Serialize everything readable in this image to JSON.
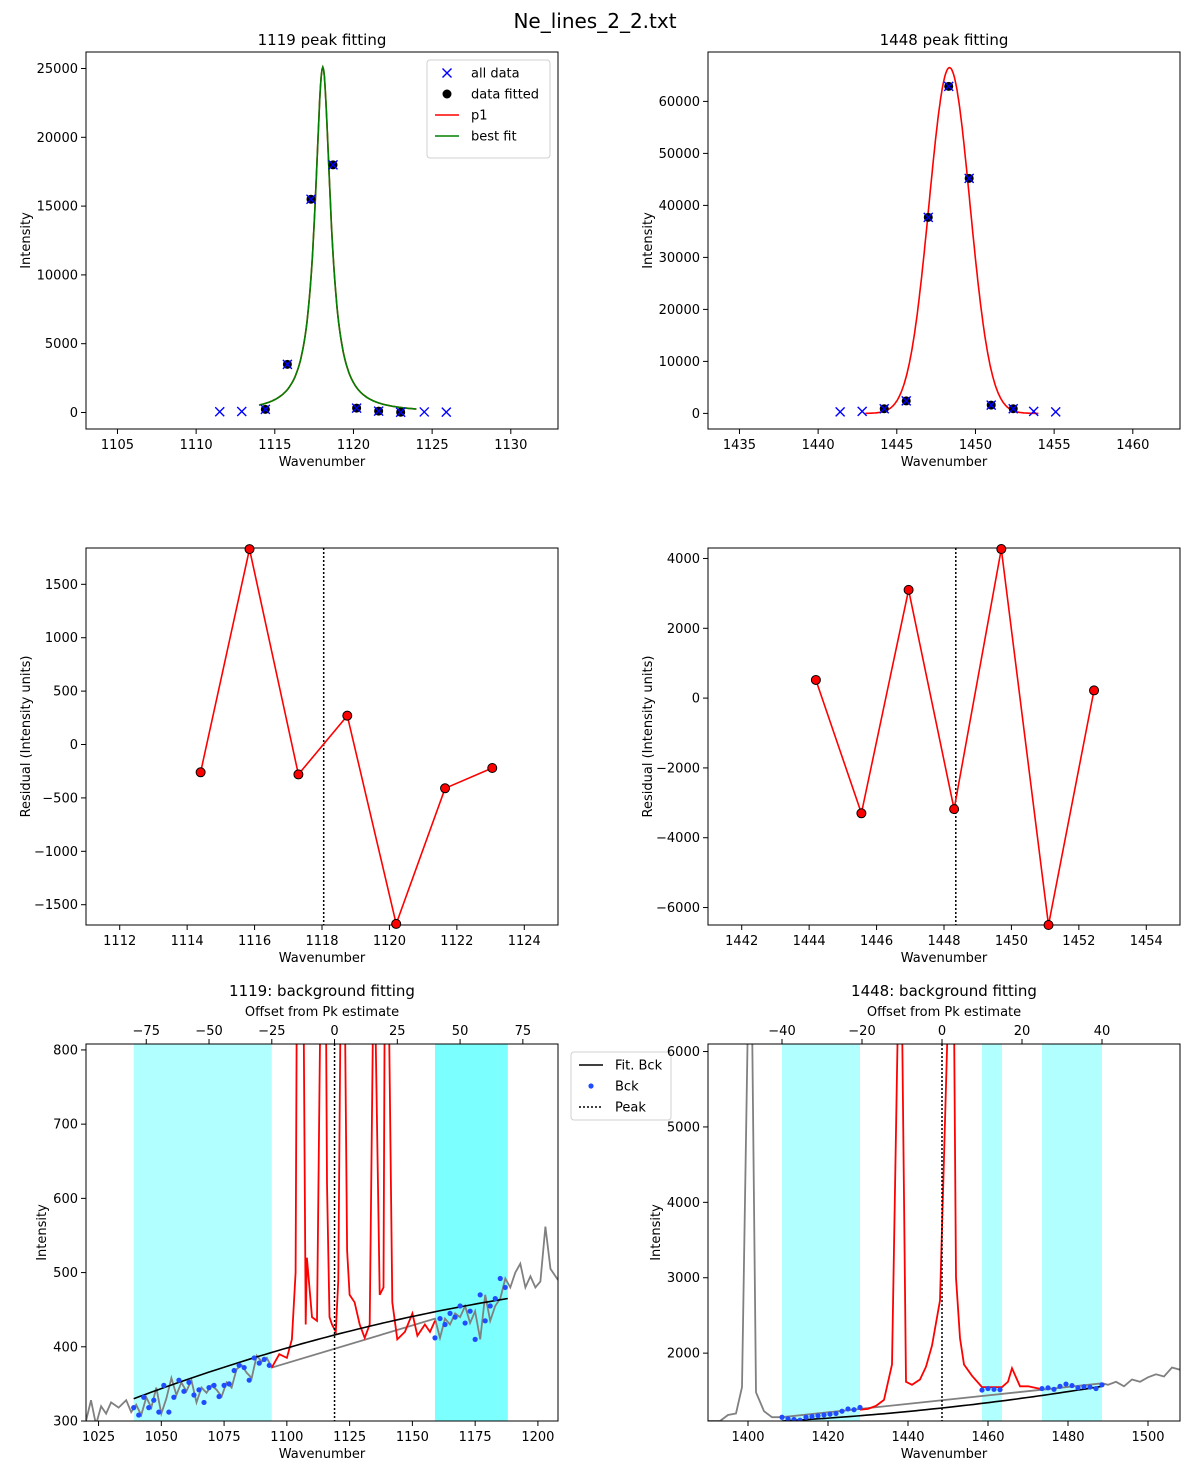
{
  "suptitle": "Ne_lines_2_2.txt",
  "colors": {
    "all_data": "#0000ff",
    "fitted": "#000000",
    "p1": "#ff0000",
    "best_fit": "#008000",
    "bck_region": "#00ffff",
    "bck_points": "#1f4cff",
    "data_line": "#808080",
    "fit_bck": "#000000"
  },
  "chart_data": [
    {
      "id": "peak1119",
      "type": "scatter",
      "title": "1119 peak fitting",
      "xlabel": "Wavenumber",
      "ylabel": "Intensity",
      "xlim": [
        1103,
        1133
      ],
      "ylim": [
        -1200,
        26200
      ],
      "xticks": [
        1105,
        1110,
        1115,
        1120,
        1125,
        1130
      ],
      "yticks": [
        0,
        5000,
        10000,
        15000,
        20000,
        25000
      ],
      "legend": {
        "placement": "top-right",
        "entries": [
          "all data",
          "data fitted",
          "p1",
          "best fit"
        ]
      },
      "all_data": {
        "x": [
          1111.5,
          1112.9,
          1114.4,
          1115.8,
          1117.3,
          1118.7,
          1120.2,
          1121.6,
          1123.0,
          1124.5,
          1125.9
        ],
        "y": [
          50,
          70,
          230,
          3500,
          15500,
          18000,
          320,
          100,
          20,
          40,
          30
        ]
      },
      "data_fitted": {
        "x": [
          1114.4,
          1115.8,
          1117.3,
          1118.7,
          1120.2,
          1121.6,
          1123.0
        ],
        "y": [
          230,
          3500,
          15500,
          18000,
          320,
          100,
          20
        ]
      },
      "fit": {
        "kind": "lorentz",
        "center": 1118.05,
        "amp": 25100,
        "hwhm": 0.6,
        "xmin": 1114,
        "xmax": 1124
      }
    },
    {
      "id": "peak1448",
      "type": "scatter",
      "title": "1448 peak fitting",
      "xlabel": "Wavenumber",
      "ylabel": "Intensity",
      "xlim": [
        1433,
        1463
      ],
      "ylim": [
        -3000,
        69500
      ],
      "xticks": [
        1435,
        1440,
        1445,
        1450,
        1455,
        1460
      ],
      "yticks": [
        0,
        10000,
        20000,
        30000,
        40000,
        50000,
        60000
      ],
      "all_data": {
        "x": [
          1441.4,
          1442.8,
          1444.2,
          1445.6,
          1447.0,
          1448.3,
          1449.6,
          1451.0,
          1452.4,
          1453.7,
          1455.1
        ],
        "y": [
          300,
          400,
          900,
          2400,
          37700,
          62900,
          45200,
          1600,
          900,
          400,
          300
        ]
      },
      "data_fitted": {
        "x": [
          1444.2,
          1445.6,
          1447.0,
          1448.3,
          1449.6,
          1451.0,
          1452.4
        ],
        "y": [
          900,
          2400,
          37700,
          62900,
          45200,
          1600,
          900
        ]
      },
      "fit": {
        "kind": "gauss",
        "center": 1448.35,
        "amp": 66500,
        "sigma": 1.3,
        "xmin": 1443,
        "xmax": 1454
      }
    },
    {
      "id": "resid1119",
      "type": "line",
      "xlabel": "Wavenumber",
      "ylabel": "Residual (Intensity units)",
      "xlim": [
        1111,
        1125
      ],
      "ylim": [
        -1690,
        1840
      ],
      "xticks": [
        1112,
        1114,
        1116,
        1118,
        1120,
        1122,
        1124
      ],
      "yticks": [
        -1500,
        -1000,
        -500,
        0,
        500,
        1000,
        1500
      ],
      "x": [
        1114.4,
        1115.85,
        1117.3,
        1118.75,
        1120.2,
        1121.65,
        1123.05
      ],
      "y": [
        -260,
        1830,
        -280,
        270,
        -1680,
        -410,
        -220
      ],
      "vline": 1118.05
    },
    {
      "id": "resid1448",
      "type": "line",
      "xlabel": "Wavenumber",
      "ylabel": "Residual (Intensity units)",
      "xlim": [
        1441,
        1455
      ],
      "ylim": [
        -6500,
        4300
      ],
      "xticks": [
        1442,
        1444,
        1446,
        1448,
        1450,
        1452,
        1454
      ],
      "yticks": [
        -6000,
        -4000,
        -2000,
        0,
        2000,
        4000
      ],
      "x": [
        1444.2,
        1445.55,
        1446.95,
        1448.3,
        1449.7,
        1451.1,
        1452.45
      ],
      "y": [
        520,
        -3300,
        3100,
        -3180,
        4270,
        -6500,
        220
      ],
      "vline": 1448.35
    },
    {
      "id": "bck1119",
      "type": "line",
      "title": "1119: background fitting",
      "xlabel": "Wavenumber",
      "ylabel": "Intensity",
      "top_xlabel": "Offset from Pk estimate",
      "xlim": [
        1020,
        1208
      ],
      "ylim": [
        300,
        808
      ],
      "xticks": [
        1025,
        1050,
        1075,
        1100,
        1125,
        1150,
        1175,
        1200
      ],
      "yticks": [
        300,
        400,
        500,
        600,
        700,
        800
      ],
      "top_offset": 1119,
      "top_ticks": [
        -75,
        -50,
        -25,
        0,
        25,
        50,
        75
      ],
      "peak_line": 1119,
      "regions": [
        [
          1039,
          1094
        ],
        [
          1159,
          1188
        ],
        [
          1159,
          1188
        ]
      ],
      "fit_bck": {
        "x1": 1039,
        "y1": 330,
        "x2": 1188,
        "y2": 465,
        "curve": 0.2
      },
      "legend": {
        "placement": "outside-right",
        "entries": [
          "Fit. Bck",
          "Bck",
          "Peak"
        ]
      },
      "gray_line": {
        "x": [
          1020,
          1022,
          1024,
          1026,
          1028,
          1030,
          1033,
          1036,
          1038,
          1040,
          1042,
          1044,
          1046,
          1048,
          1050,
          1052,
          1054,
          1056,
          1058,
          1060,
          1062,
          1064,
          1066,
          1068,
          1070,
          1072,
          1074,
          1076,
          1078,
          1080,
          1082,
          1084,
          1086,
          1088,
          1090,
          1092,
          1094,
          1159,
          1161,
          1163,
          1165,
          1167,
          1169,
          1171,
          1173,
          1175,
          1177,
          1179,
          1181,
          1183,
          1185,
          1187,
          1189,
          1191,
          1193,
          1195,
          1197,
          1199,
          1201,
          1203,
          1205,
          1208
        ],
        "y": [
          300,
          328,
          295,
          320,
          310,
          325,
          318,
          328,
          312,
          322,
          308,
          332,
          318,
          345,
          310,
          330,
          358,
          335,
          352,
          340,
          355,
          325,
          345,
          338,
          348,
          342,
          333,
          352,
          345,
          370,
          375,
          365,
          358,
          388,
          380,
          385,
          372,
          438,
          412,
          438,
          430,
          445,
          440,
          455,
          432,
          448,
          410,
          470,
          435,
          455,
          465,
          492,
          480,
          500,
          512,
          480,
          495,
          480,
          488,
          562,
          505,
          490
        ]
      },
      "red_line": {
        "x": [
          1094,
          1097,
          1100,
          1102,
          1103.5,
          1104,
          1106,
          1107.5,
          1108,
          1110,
          1112,
          1113.5,
          1115,
          1116,
          1117,
          1118,
          1119.5,
          1120.5,
          1121.5,
          1123,
          1124,
          1125,
          1127,
          1129,
          1131,
          1133,
          1134.5,
          1135,
          1137,
          1138.5,
          1139,
          1140.5,
          1142,
          1144,
          1147,
          1150,
          1152,
          1155,
          1157,
          1159
        ],
        "y": [
          372,
          390,
          385,
          410,
          500,
          900,
          1200,
          430,
          520,
          440,
          435,
          900,
          1200,
          620,
          440,
          430,
          420,
          490,
          900,
          900,
          530,
          470,
          460,
          430,
          412,
          430,
          900,
          900,
          470,
          480,
          900,
          900,
          460,
          410,
          420,
          445,
          415,
          430,
          420,
          435
        ]
      },
      "bck_points": {
        "x": [
          1039,
          1041,
          1043,
          1045,
          1047,
          1049,
          1051,
          1053,
          1055,
          1057,
          1059,
          1061,
          1063,
          1065,
          1067,
          1069,
          1071,
          1073,
          1075,
          1077,
          1079,
          1081,
          1083,
          1085,
          1087,
          1089,
          1091,
          1093,
          1159,
          1161,
          1163,
          1165,
          1167,
          1169,
          1171,
          1173,
          1175,
          1177,
          1179,
          1181,
          1183,
          1185,
          1187
        ],
        "y": [
          318,
          308,
          332,
          318,
          328,
          312,
          348,
          312,
          332,
          355,
          340,
          352,
          335,
          342,
          325,
          345,
          348,
          333,
          348,
          350,
          368,
          375,
          372,
          355,
          385,
          378,
          383,
          375,
          412,
          438,
          430,
          445,
          440,
          455,
          432,
          448,
          410,
          470,
          435,
          455,
          465,
          492,
          480
        ]
      }
    },
    {
      "id": "bck1448",
      "type": "line",
      "title": "1448: background fitting",
      "xlabel": "Wavenumber",
      "ylabel": "Intensity",
      "top_xlabel": "Offset from Pk estimate",
      "xlim": [
        1390,
        1508
      ],
      "ylim": [
        1100,
        6100
      ],
      "xticks": [
        1400,
        1420,
        1440,
        1460,
        1480,
        1500
      ],
      "yticks": [
        2000,
        3000,
        4000,
        5000,
        6000
      ],
      "top_offset": 1448.5,
      "top_ticks": [
        -40,
        -20,
        0,
        20,
        40
      ],
      "peak_line": 1448.5,
      "regions": [
        [
          1408.5,
          1428
        ],
        [
          1458.5,
          1463.5
        ],
        [
          1473.5,
          1488.5
        ]
      ],
      "fit_bck": {
        "x1": 1408.5,
        "y1": 1100,
        "x2": 1488.5,
        "y2": 1560,
        "curve": -0.25
      },
      "gray_line": {
        "x": [
          1390,
          1393,
          1395,
          1397,
          1398.5,
          1400,
          1401,
          1402,
          1404,
          1406,
          1408.5,
          1488.5,
          1490,
          1492,
          1494,
          1496,
          1498,
          1500,
          1502,
          1504,
          1506,
          1508
        ],
        "y": [
          1100,
          1100,
          1180,
          1200,
          1550,
          6500,
          6500,
          1480,
          1230,
          1150,
          1150,
          1600,
          1580,
          1620,
          1560,
          1650,
          1620,
          1680,
          1720,
          1690,
          1810,
          1780
        ]
      },
      "red_line": {
        "x": [
          1428,
          1430,
          1432,
          1434,
          1436,
          1437.5,
          1438.5,
          1439.5,
          1441,
          1443,
          1444.5,
          1446,
          1448,
          1450,
          1451.5,
          1452,
          1453,
          1454,
          1456,
          1458.5,
          1463.5,
          1465,
          1466,
          1468,
          1470,
          1473.5
        ],
        "y": [
          1250,
          1260,
          1300,
          1380,
          1850,
          6500,
          6500,
          1620,
          1580,
          1650,
          1820,
          2100,
          2700,
          6500,
          6500,
          3000,
          2200,
          1850,
          1700,
          1550,
          1550,
          1620,
          1800,
          1560,
          1560,
          1520
        ]
      },
      "bck_points": {
        "x": [
          1408.5,
          1410,
          1411.5,
          1413,
          1414.5,
          1416,
          1417.5,
          1419,
          1420.5,
          1422,
          1423.5,
          1425,
          1426.5,
          1428,
          1458.5,
          1460,
          1461.5,
          1463,
          1473.5,
          1475,
          1476.5,
          1478,
          1479.5,
          1481,
          1482.5,
          1484,
          1485.5,
          1487,
          1488.5
        ],
        "y": [
          1150,
          1130,
          1120,
          1110,
          1150,
          1160,
          1170,
          1180,
          1190,
          1200,
          1230,
          1260,
          1250,
          1280,
          1510,
          1530,
          1520,
          1515,
          1530,
          1540,
          1520,
          1560,
          1590,
          1570,
          1540,
          1555,
          1550,
          1530,
          1580
        ]
      }
    }
  ]
}
